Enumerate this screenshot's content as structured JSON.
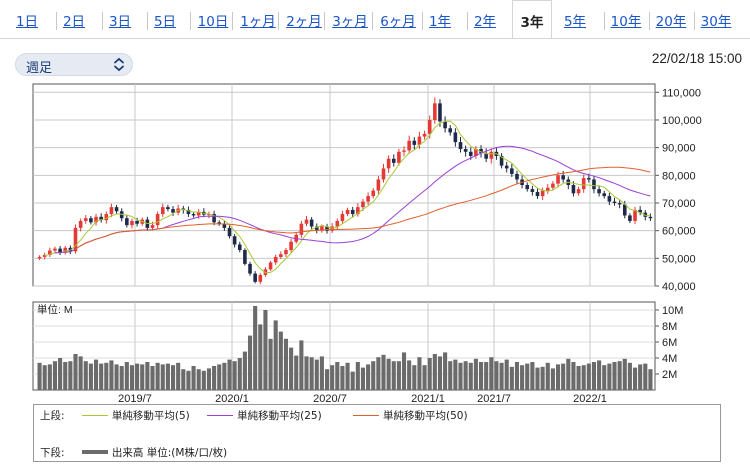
{
  "tabs": {
    "items": [
      "1日",
      "2日",
      "3日",
      "5日",
      "10日",
      "1ヶ月",
      "2ヶ月",
      "3ヶ月",
      "6ヶ月",
      "1年",
      "2年",
      "3年",
      "5年",
      "10年",
      "20年",
      "30年"
    ],
    "active": "3年"
  },
  "period_select": {
    "value": "週足"
  },
  "timestamp": "22/02/18 15:00",
  "legend": {
    "upper_label": "上段:",
    "lower_label": "下段:",
    "ma5": "単純移動平均(5)",
    "ma25": "単純移動平均(25)",
    "ma50": "単純移動平均(50)",
    "volume": "出来高 単位:(M株/口/枚)"
  },
  "colors": {
    "up": "#e53935",
    "down": "#1e2a4a",
    "ma5": "#a8c832",
    "ma25": "#9b3fd6",
    "ma50": "#e0602c",
    "volume": "#6b6b6b"
  },
  "chart_data": {
    "type": "candlestick",
    "unit_label": "単位: M",
    "price_axis": {
      "ticks": [
        40000,
        50000,
        60000,
        70000,
        80000,
        90000,
        100000,
        110000
      ],
      "tick_labels": [
        "40,000",
        "50,000",
        "60,000",
        "70,000",
        "80,000",
        "90,000",
        "100,000",
        "110,000"
      ],
      "range": [
        40000,
        113000
      ]
    },
    "volume_axis": {
      "ticks": [
        2,
        4,
        6,
        8,
        10
      ],
      "tick_labels": [
        "2M",
        "4M",
        "6M",
        "8M",
        "10M"
      ],
      "range": [
        0,
        11
      ]
    },
    "x_labels": [
      "2019/7",
      "2020/1",
      "2020/7",
      "2021/1",
      "2021/7",
      "2022/1"
    ],
    "closes": [
      50500,
      51200,
      52800,
      53500,
      52000,
      53800,
      52500,
      61000,
      63500,
      64500,
      63000,
      65000,
      63800,
      66000,
      68500,
      67000,
      64500,
      62000,
      63500,
      62500,
      64000,
      61000,
      62000,
      66000,
      68500,
      67800,
      66500,
      68000,
      67500,
      66000,
      65500,
      66800,
      65800,
      66000,
      63000,
      62500,
      61000,
      58000,
      55000,
      53000,
      48000,
      44500,
      41500,
      44000,
      46000,
      48500,
      50500,
      51500,
      53000,
      56000,
      58500,
      62500,
      64000,
      61500,
      60000,
      61500,
      60000,
      61500,
      63500,
      66000,
      67500,
      66000,
      68500,
      70500,
      72500,
      74500,
      78500,
      82500,
      86000,
      84500,
      88500,
      89000,
      92500,
      91000,
      94000,
      95000,
      100000,
      106000,
      99500,
      97000,
      95500,
      92000,
      89500,
      88500,
      87000,
      89500,
      88000,
      86000,
      88500,
      87000,
      83500,
      82500,
      80500,
      78500,
      76500,
      75000,
      74000,
      72500,
      74500,
      75500,
      77000,
      80000,
      78500,
      76500,
      73500,
      75000,
      79000,
      78500,
      75000,
      73500,
      72500,
      70500,
      70000,
      69500,
      65500,
      63500,
      67500,
      66500,
      65000,
      64500
    ],
    "volume": [
      3.4,
      3.1,
      3.2,
      3.6,
      4.0,
      3.5,
      3.6,
      4.5,
      4.2,
      3.6,
      3.3,
      3.8,
      3.3,
      3.4,
      3.7,
      3.2,
      3.0,
      3.5,
      3.1,
      3.3,
      3.2,
      3.5,
      3.0,
      3.4,
      3.2,
      3.3,
      3.1,
      3.4,
      2.6,
      2.4,
      3.0,
      2.6,
      2.4,
      2.7,
      3.0,
      3.2,
      3.4,
      3.8,
      3.6,
      4.0,
      4.8,
      6.8,
      10.5,
      8.2,
      10.0,
      6.4,
      8.7,
      7.3,
      6.4,
      5.3,
      4.3,
      6.2,
      4.2,
      4.1,
      3.8,
      4.2,
      2.6,
      3.1,
      3.5,
      3.0,
      3.4,
      2.3,
      3.5,
      2.8,
      3.2,
      3.6,
      4.1,
      4.4,
      3.9,
      3.6,
      3.6,
      4.7,
      3.7,
      3.1,
      4.1,
      3.1,
      4.0,
      4.5,
      4.2,
      4.7,
      3.6,
      3.8,
      3.4,
      3.6,
      3.4,
      3.9,
      3.5,
      3.5,
      4.1,
      3.6,
      3.4,
      3.8,
      2.9,
      3.5,
      3.1,
      3.3,
      3.5,
      2.8,
      2.9,
      3.4,
      2.7,
      3.2,
      3.3,
      3.9,
      3.5,
      3.0,
      3.1,
      3.3,
      3.5,
      3.7,
      3.1,
      3.3,
      3.5,
      3.6,
      3.9,
      3.4,
      2.8,
      3.2,
      3.3,
      2.6
    ]
  }
}
